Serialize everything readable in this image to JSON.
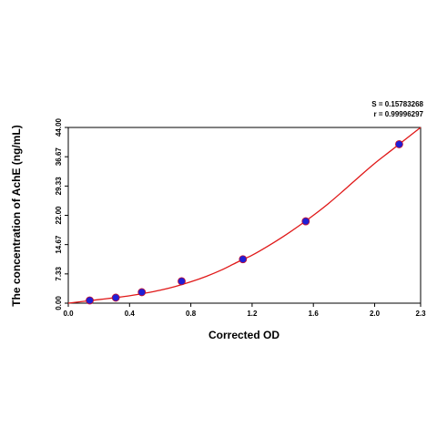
{
  "chart_data": {
    "type": "scatter",
    "xlabel": "Corrected OD",
    "ylabel": "The concentration of AchE (ng/mL)",
    "xlim": [
      0,
      2.3
    ],
    "ylim": [
      0,
      44
    ],
    "x_ticks": [
      "0.0",
      "0.4",
      "0.8",
      "1.2",
      "1.6",
      "2.0",
      "2.3"
    ],
    "x_tick_values": [
      0,
      0.4,
      0.8,
      1.2,
      1.6,
      2.0,
      2.3
    ],
    "y_ticks": [
      "0.00",
      "7.33",
      "14.67",
      "22.00",
      "29.33",
      "36.67",
      "44.00"
    ],
    "y_tick_values": [
      0,
      7.33,
      14.67,
      22,
      29.33,
      36.67,
      44
    ],
    "grid": false,
    "annotations": [
      "S = 0.15783268",
      "r = 0.99996297"
    ],
    "points": {
      "x": [
        0.14,
        0.31,
        0.48,
        0.74,
        1.14,
        1.55,
        2.16
      ],
      "y": [
        0.69,
        1.38,
        2.75,
        5.5,
        11.0,
        20.5,
        39.8
      ]
    },
    "fit_curve": {
      "x": [
        0.0,
        0.1,
        0.2,
        0.3,
        0.4,
        0.5,
        0.6,
        0.7,
        0.8,
        0.9,
        1.0,
        1.1,
        1.2,
        1.3,
        1.4,
        1.5,
        1.6,
        1.7,
        1.8,
        1.9,
        2.0,
        2.1,
        2.2,
        2.3
      ],
      "y": [
        0.0,
        0.45,
        0.9,
        1.35,
        1.85,
        2.5,
        3.25,
        4.2,
        5.35,
        6.7,
        8.3,
        10.2,
        12.0,
        14.2,
        16.6,
        19.2,
        22.0,
        25.0,
        28.3,
        31.7,
        35.0,
        38.0,
        41.0,
        44.0
      ]
    }
  }
}
